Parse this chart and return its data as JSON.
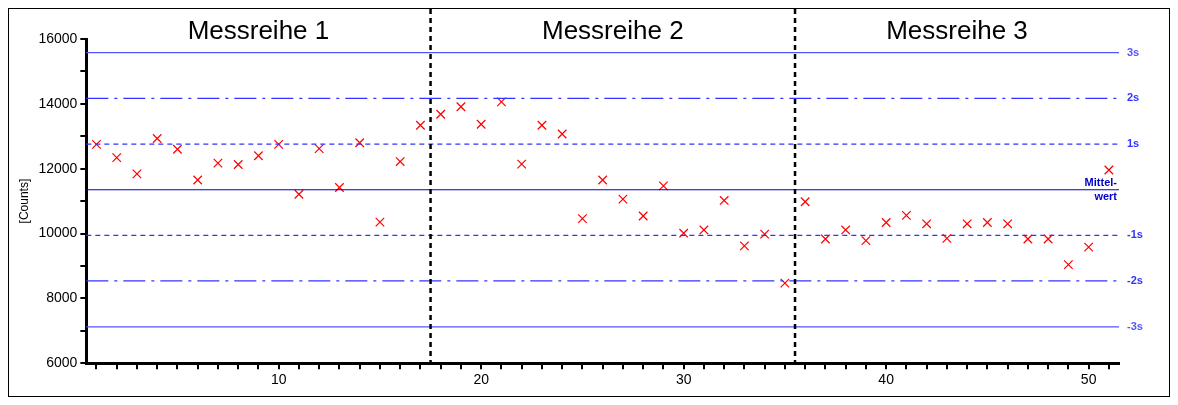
{
  "chart_data": {
    "type": "scatter",
    "ylabel": "[Counts]",
    "marker": "cross",
    "grid": false,
    "legend": false,
    "annotations": [
      "Messreihe 1",
      "Messreihe 2",
      "Messreihe 3"
    ],
    "x": [
      1,
      2,
      3,
      4,
      5,
      6,
      7,
      8,
      9,
      10,
      11,
      12,
      13,
      14,
      15,
      16,
      17,
      18,
      19,
      20,
      21,
      22,
      23,
      24,
      25,
      26,
      27,
      28,
      29,
      30,
      31,
      32,
      33,
      34,
      35,
      36,
      37,
      38,
      39,
      40,
      41,
      42,
      43,
      44,
      45,
      46,
      47,
      48,
      49,
      50,
      51
    ],
    "series": [
      {
        "color": "#ff0000",
        "values": [
          12750,
          12340,
          11840,
          12930,
          12600,
          11650,
          12170,
          12130,
          12400,
          12750,
          11210,
          12620,
          11420,
          12800,
          10350,
          12220,
          13340,
          13680,
          13910,
          13370,
          14060,
          12140,
          13340,
          13070,
          10460,
          11650,
          11060,
          10540,
          11470,
          10010,
          10110,
          11020,
          9620,
          9980,
          8470,
          10980,
          9830,
          10110,
          9780,
          10340,
          10560,
          10300,
          9850,
          10300,
          10340,
          10300,
          9830,
          9830,
          9040,
          9580,
          11960
        ]
      }
    ],
    "xlim": [
      0.5,
      51.5
    ],
    "xticks": [
      {
        "value": 1,
        "label": null
      },
      {
        "value": 2,
        "label": null
      },
      {
        "value": 3,
        "label": null
      },
      {
        "value": 4,
        "label": null
      },
      {
        "value": 5,
        "label": null
      },
      {
        "value": 6,
        "label": null
      },
      {
        "value": 7,
        "label": null
      },
      {
        "value": 8,
        "label": null
      },
      {
        "value": 9,
        "label": null
      },
      10,
      {
        "value": 11,
        "label": null
      },
      {
        "value": 12,
        "label": null
      },
      {
        "value": 13,
        "label": null
      },
      {
        "value": 14,
        "label": null
      },
      {
        "value": 15,
        "label": null
      },
      {
        "value": 16,
        "label": null
      },
      {
        "value": 17,
        "label": null
      },
      {
        "value": 18,
        "label": null
      },
      {
        "value": 19,
        "label": null
      },
      20,
      {
        "value": 21,
        "label": null
      },
      {
        "value": 22,
        "label": null
      },
      {
        "value": 23,
        "label": null
      },
      {
        "value": 24,
        "label": null
      },
      {
        "value": 25,
        "label": null
      },
      {
        "value": 26,
        "label": null
      },
      {
        "value": 27,
        "label": null
      },
      {
        "value": 28,
        "label": null
      },
      {
        "value": 29,
        "label": null
      },
      30,
      {
        "value": 31,
        "label": null
      },
      {
        "value": 32,
        "label": null
      },
      {
        "value": 33,
        "label": null
      },
      {
        "value": 34,
        "label": null
      },
      {
        "value": 35,
        "label": null
      },
      {
        "value": 36,
        "label": null
      },
      {
        "value": 37,
        "label": null
      },
      {
        "value": 38,
        "label": null
      },
      {
        "value": 39,
        "label": null
      },
      40,
      {
        "value": 41,
        "label": null
      },
      {
        "value": 42,
        "label": null
      },
      {
        "value": 43,
        "label": null
      },
      {
        "value": 44,
        "label": null
      },
      {
        "value": 45,
        "label": null
      },
      {
        "value": 46,
        "label": null
      },
      {
        "value": 47,
        "label": null
      },
      {
        "value": 48,
        "label": null
      },
      {
        "value": 49,
        "label": null
      },
      50,
      {
        "value": 51,
        "label": null
      }
    ],
    "ylim": [
      6000,
      16000
    ],
    "yticks": [
      6000,
      {
        "value": 7000,
        "label": null
      },
      8000,
      {
        "value": 9000,
        "label": null
      },
      10000,
      {
        "value": 11000,
        "label": null
      },
      12000,
      {
        "value": 13000,
        "label": null
      },
      14000,
      {
        "value": 15000,
        "label": null
      },
      16000
    ],
    "ref_lines": [
      {
        "axis": "y",
        "value": 15580,
        "label": "3s",
        "color": "#5555ff",
        "line_style": "solid"
      },
      {
        "axis": "y",
        "value": 14170,
        "label": "2s",
        "color": "#3333ff",
        "line_style": "dashed"
      },
      {
        "axis": "y",
        "value": 12760,
        "label": "1s",
        "color": "#3333ff",
        "line_style": "dotted"
      },
      {
        "axis": "y",
        "value": 11350,
        "label": "Mittel-\nwert",
        "color": "#0000cc",
        "line_style": "solid"
      },
      {
        "axis": "y",
        "value": 9940,
        "label": "-1s",
        "color": "#3333ff",
        "line_style": "dotted"
      },
      {
        "axis": "y",
        "value": 8540,
        "label": "-2s",
        "color": "#3333ff",
        "line_style": "dashed"
      },
      {
        "axis": "y",
        "value": 7120,
        "label": "-3s",
        "color": "#5555ff",
        "line_style": "solid"
      },
      {
        "axis": "x",
        "value": 17.5,
        "color": "#000000",
        "line_style": "dashed"
      },
      {
        "axis": "x",
        "value": 35.5,
        "color": "#000000",
        "line_style": "dashed"
      }
    ]
  }
}
